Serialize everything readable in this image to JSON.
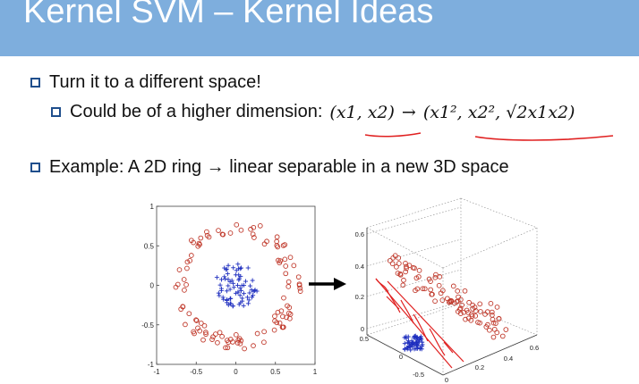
{
  "slide": {
    "title": "Kernel SVM – Kernel Ideas",
    "bullets": {
      "b1": "Turn it to a different space!",
      "b2_text": "Could be of a higher dimension:",
      "b2_math_left": "(x1, x2)",
      "b2_math_arrow": "→",
      "b2_math_right": "(x1², x2², √2x1x2)",
      "b3": "Example: A 2D ring → linear separable in a new 3D space"
    },
    "colors": {
      "header": "#7eaedd",
      "bullet_box": "#1f4e8c",
      "outer_ring": "#c0392b",
      "inner_cluster": "#1f2fbf",
      "annotation": "#e02020"
    }
  },
  "chart_data": [
    {
      "type": "scatter",
      "title": "",
      "xlabel": "",
      "ylabel": "",
      "xlim": [
        -1,
        1
      ],
      "ylim": [
        -1,
        1
      ],
      "xticks": [
        "-1",
        "-0.5",
        "0",
        "0.5",
        "1"
      ],
      "yticks": [
        "-1",
        "-0.5",
        "0",
        "0.5",
        "1"
      ],
      "series": [
        {
          "marker": "circle",
          "color": "#c0392b",
          "shape": "ring",
          "radius_range": [
            0.62,
            0.82
          ]
        },
        {
          "marker": "plus",
          "color": "#1f2fbf",
          "shape": "disk",
          "radius_range": [
            0,
            0.28
          ]
        }
      ]
    },
    {
      "type": "scatter",
      "title": "",
      "projection": "3d",
      "zticks": [
        "0",
        "0.2",
        "0.4",
        "0.6"
      ],
      "yticks": [
        "0.5",
        "0",
        "-0.5"
      ],
      "xticks": [
        "0",
        "0.2",
        "0.4",
        "0.6"
      ],
      "grid": true,
      "series": [
        {
          "marker": "circle",
          "color": "#c0392b"
        },
        {
          "marker": "plus",
          "color": "#1f2fbf"
        }
      ]
    }
  ]
}
